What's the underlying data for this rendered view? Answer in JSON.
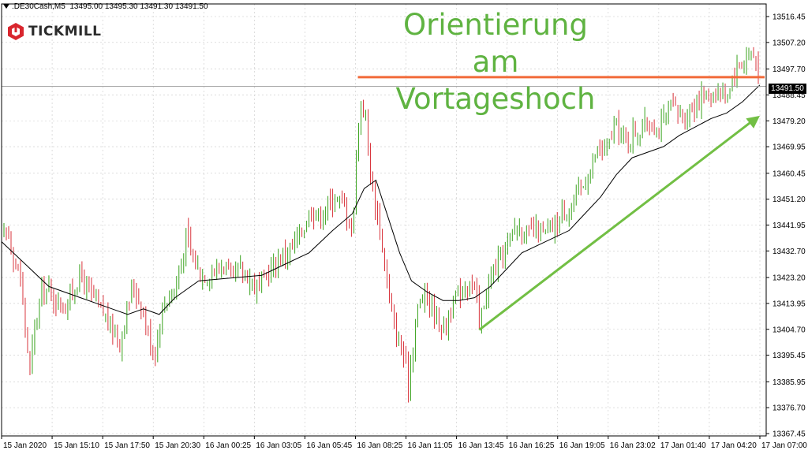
{
  "header": {
    "symbol": ".DE30Cash,M5",
    "ohlc": "13495.00 13495.30 13491.30 13491.50"
  },
  "logo": {
    "text": "TICKMILL"
  },
  "annotation": {
    "lines": [
      "Orientierung",
      "am",
      "Vortageshoch"
    ]
  },
  "colors": {
    "bull": "#3aa31e",
    "bear": "#d9363e",
    "ma": "#000000",
    "resistance": "#f26b3a",
    "arrow": "#72bf44",
    "annotation": "#5fb341",
    "grid": "#c8c8c8"
  },
  "chart_data": {
    "type": "candlestick",
    "title": "",
    "symbol": ".DE30Cash",
    "timeframe": "M5",
    "xlabel": "",
    "ylabel": "",
    "ylim": [
      13367.45,
      13516.45
    ],
    "grid": true,
    "current_price": "13491.50",
    "y_ticks": [
      "13516.45",
      "13507.20",
      "13497.70",
      "13488.45",
      "13479.20",
      "13469.95",
      "13460.45",
      "13451.20",
      "13441.95",
      "13432.70",
      "13423.20",
      "13413.95",
      "13404.70",
      "13395.45",
      "13385.95",
      "13376.70",
      "13367.45"
    ],
    "x_ticks": [
      "15 Jan 2020",
      "15 Jan 15:10",
      "15 Jan 17:50",
      "15 Jan 20:30",
      "16 Jan 00:25",
      "16 Jan 03:05",
      "16 Jan 05:45",
      "16 Jan 08:25",
      "16 Jan 11:05",
      "16 Jan 13:45",
      "16 Jan 16:25",
      "16 Jan 19:05",
      "16 Jan 23:02",
      "17 Jan 01:40",
      "17 Jan 04:20",
      "17 Jan 07:00"
    ],
    "close_path": [
      [
        0,
        13438
      ],
      [
        8,
        13440
      ],
      [
        16,
        13430
      ],
      [
        24,
        13422
      ],
      [
        32,
        13400
      ],
      [
        36,
        13390
      ],
      [
        42,
        13405
      ],
      [
        52,
        13420
      ],
      [
        60,
        13418
      ],
      [
        70,
        13415
      ],
      [
        80,
        13412
      ],
      [
        92,
        13420
      ],
      [
        100,
        13424
      ],
      [
        108,
        13420
      ],
      [
        118,
        13415
      ],
      [
        130,
        13410
      ],
      [
        140,
        13405
      ],
      [
        150,
        13400
      ],
      [
        158,
        13410
      ],
      [
        166,
        13420
      ],
      [
        176,
        13415
      ],
      [
        184,
        13405
      ],
      [
        194,
        13395
      ],
      [
        202,
        13410
      ],
      [
        210,
        13416
      ],
      [
        218,
        13418
      ],
      [
        226,
        13425
      ],
      [
        234,
        13438
      ],
      [
        242,
        13430
      ],
      [
        252,
        13425
      ],
      [
        262,
        13424
      ],
      [
        272,
        13426
      ],
      [
        282,
        13428
      ],
      [
        292,
        13422
      ],
      [
        302,
        13426
      ],
      [
        312,
        13424
      ],
      [
        322,
        13420
      ],
      [
        332,
        13422
      ],
      [
        342,
        13426
      ],
      [
        352,
        13430
      ],
      [
        362,
        13432
      ],
      [
        372,
        13435
      ],
      [
        382,
        13440
      ],
      [
        392,
        13448
      ],
      [
        402,
        13445
      ],
      [
        412,
        13448
      ],
      [
        422,
        13452
      ],
      [
        432,
        13450
      ],
      [
        440,
        13445
      ],
      [
        446,
        13438
      ],
      [
        450,
        13470
      ],
      [
        456,
        13485
      ],
      [
        462,
        13480
      ],
      [
        468,
        13460
      ],
      [
        474,
        13450
      ],
      [
        480,
        13440
      ],
      [
        486,
        13428
      ],
      [
        492,
        13415
      ],
      [
        498,
        13405
      ],
      [
        504,
        13400
      ],
      [
        510,
        13395
      ],
      [
        516,
        13385
      ],
      [
        520,
        13395
      ],
      [
        526,
        13410
      ],
      [
        532,
        13415
      ],
      [
        538,
        13418
      ],
      [
        546,
        13412
      ],
      [
        554,
        13408
      ],
      [
        562,
        13405
      ],
      [
        570,
        13412
      ],
      [
        578,
        13416
      ],
      [
        586,
        13420
      ],
      [
        594,
        13422
      ],
      [
        602,
        13418
      ],
      [
        606,
        13406
      ],
      [
        612,
        13415
      ],
      [
        620,
        13422
      ],
      [
        628,
        13428
      ],
      [
        636,
        13432
      ],
      [
        644,
        13436
      ],
      [
        652,
        13442
      ],
      [
        660,
        13440
      ],
      [
        668,
        13438
      ],
      [
        676,
        13440
      ],
      [
        686,
        13438
      ],
      [
        696,
        13440
      ],
      [
        706,
        13443
      ],
      [
        716,
        13448
      ],
      [
        726,
        13450
      ],
      [
        736,
        13455
      ],
      [
        744,
        13460
      ],
      [
        752,
        13465
      ],
      [
        760,
        13470
      ],
      [
        766,
        13468
      ],
      [
        772,
        13472
      ],
      [
        778,
        13478
      ],
      [
        786,
        13474
      ],
      [
        794,
        13472
      ],
      [
        802,
        13475
      ],
      [
        810,
        13476
      ],
      [
        818,
        13478
      ],
      [
        826,
        13478
      ],
      [
        834,
        13476
      ],
      [
        842,
        13480
      ],
      [
        850,
        13484
      ],
      [
        858,
        13482
      ],
      [
        866,
        13480
      ],
      [
        874,
        13484
      ],
      [
        882,
        13486
      ],
      [
        890,
        13488
      ],
      [
        898,
        13488
      ],
      [
        906,
        13490
      ],
      [
        914,
        13488
      ],
      [
        922,
        13490
      ],
      [
        928,
        13496
      ],
      [
        934,
        13498
      ],
      [
        940,
        13500
      ],
      [
        946,
        13502
      ],
      [
        952,
        13504
      ],
      [
        958,
        13500
      ],
      [
        962,
        13493
      ]
    ],
    "moving_average_path": [
      [
        0,
        13436
      ],
      [
        30,
        13428
      ],
      [
        60,
        13420
      ],
      [
        100,
        13416
      ],
      [
        140,
        13412
      ],
      [
        160,
        13410
      ],
      [
        180,
        13412
      ],
      [
        200,
        13410
      ],
      [
        220,
        13416
      ],
      [
        250,
        13422
      ],
      [
        290,
        13423
      ],
      [
        330,
        13424
      ],
      [
        360,
        13428
      ],
      [
        390,
        13432
      ],
      [
        420,
        13440
      ],
      [
        445,
        13446
      ],
      [
        460,
        13455
      ],
      [
        475,
        13458
      ],
      [
        490,
        13445
      ],
      [
        505,
        13432
      ],
      [
        520,
        13422
      ],
      [
        540,
        13418
      ],
      [
        560,
        13415
      ],
      [
        580,
        13415
      ],
      [
        600,
        13416
      ],
      [
        620,
        13420
      ],
      [
        640,
        13426
      ],
      [
        660,
        13432
      ],
      [
        690,
        13436
      ],
      [
        720,
        13440
      ],
      [
        740,
        13446
      ],
      [
        760,
        13452
      ],
      [
        780,
        13460
      ],
      [
        800,
        13466
      ],
      [
        820,
        13468
      ],
      [
        840,
        13470
      ],
      [
        860,
        13474
      ],
      [
        880,
        13477
      ],
      [
        900,
        13480
      ],
      [
        920,
        13482
      ],
      [
        940,
        13486
      ],
      [
        962,
        13492
      ]
    ],
    "resistance_level": 13494.8,
    "trend_arrow": {
      "from": [
        606,
        13404.5
      ],
      "to": [
        962,
        13481
      ]
    }
  }
}
